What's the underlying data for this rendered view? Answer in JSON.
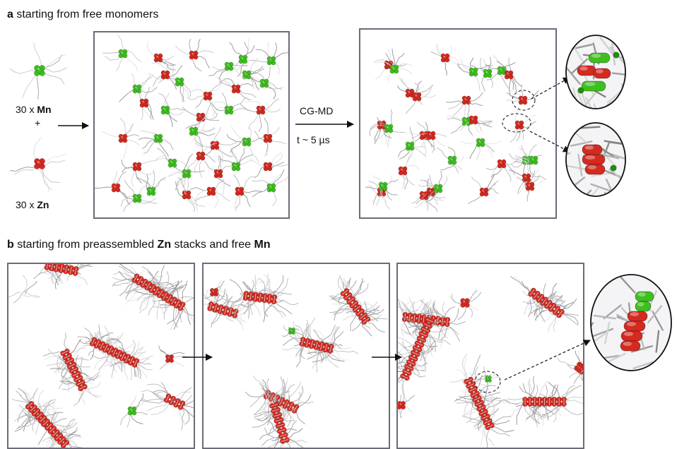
{
  "section_a": {
    "letter": "a",
    "title": "starting from free monomers",
    "monomer_mn": {
      "count": "30 x ",
      "name": "Mn",
      "color": "#3fbf1f"
    },
    "plus": "+",
    "monomer_zn": {
      "count": "30 x ",
      "name": "Zn",
      "color": "#d42a20"
    },
    "method": "CG-MD",
    "time": "t ~ 5 µs"
  },
  "section_b": {
    "letter": "b",
    "title_pre": "starting from preassembled ",
    "title_zn": "Zn",
    "title_mid": " stacks and free ",
    "title_mn": "Mn"
  },
  "icons": [
    "arrow-right-icon",
    "dashed-callout-arrow-icon",
    "zoom-inset-icon",
    "molecule-cluster-icon"
  ]
}
